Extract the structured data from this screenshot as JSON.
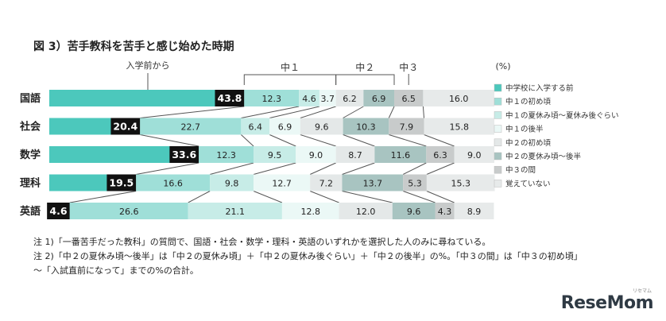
{
  "title": "図 3）苦手教科を苦手と感じ始めた時期",
  "unit": "(%)",
  "notes": [
    "注 1)「一番苦手だった教科」の質問で、国語・社会・数学・理科・英語のいずれかを選択した人のみに尋ねている。",
    "注 2)「中２の夏休み頃～後半」は「中２の夏休み頃」＋「中２の夏休み後ぐらい」＋「中２の後半」の%。「中３の間」は「中３の初め頃」",
    "～「入試直前になって」までの%の合計。"
  ],
  "logo": "ReseMom",
  "logo_sub": "リセマム",
  "chart_data": {
    "type": "bar",
    "orientation": "horizontal",
    "stacked": true,
    "categories": [
      "国語",
      "社会",
      "数学",
      "理科",
      "英語"
    ],
    "series": [
      {
        "name": "中学校に入学する前",
        "color": "#4cc8bc",
        "values": [
          43.8,
          20.4,
          33.6,
          19.5,
          4.6
        ]
      },
      {
        "name": "中１の初め頃",
        "color": "#9fdfd8",
        "values": [
          12.3,
          22.7,
          12.3,
          16.6,
          26.6
        ]
      },
      {
        "name": "中１の夏休み頃～夏休み後ぐらい",
        "color": "#c7ece7",
        "values": [
          4.6,
          6.4,
          9.5,
          9.8,
          21.1
        ]
      },
      {
        "name": "中１の後半",
        "color": "#ebf8f6",
        "values": [
          3.7,
          6.9,
          9.0,
          12.7,
          12.8
        ]
      },
      {
        "name": "中２の初め頃",
        "color": "#e4e8e8",
        "values": [
          6.2,
          9.6,
          8.7,
          7.2,
          12.0
        ]
      },
      {
        "name": "中２の夏休み頃～後半",
        "color": "#a8c4c1",
        "values": [
          6.9,
          10.3,
          11.6,
          13.7,
          9.6
        ]
      },
      {
        "name": "中３の間",
        "color": "#c8cbcb",
        "values": [
          6.5,
          7.9,
          6.3,
          5.3,
          4.3
        ]
      },
      {
        "name": "覚えていない",
        "color": "#e7eaea",
        "values": [
          16.0,
          15.8,
          9.0,
          15.3,
          8.9
        ]
      }
    ],
    "annotations": {
      "before": "入学前から",
      "groups": [
        "中１",
        "中２",
        "中３"
      ]
    },
    "legend_position": "right"
  }
}
